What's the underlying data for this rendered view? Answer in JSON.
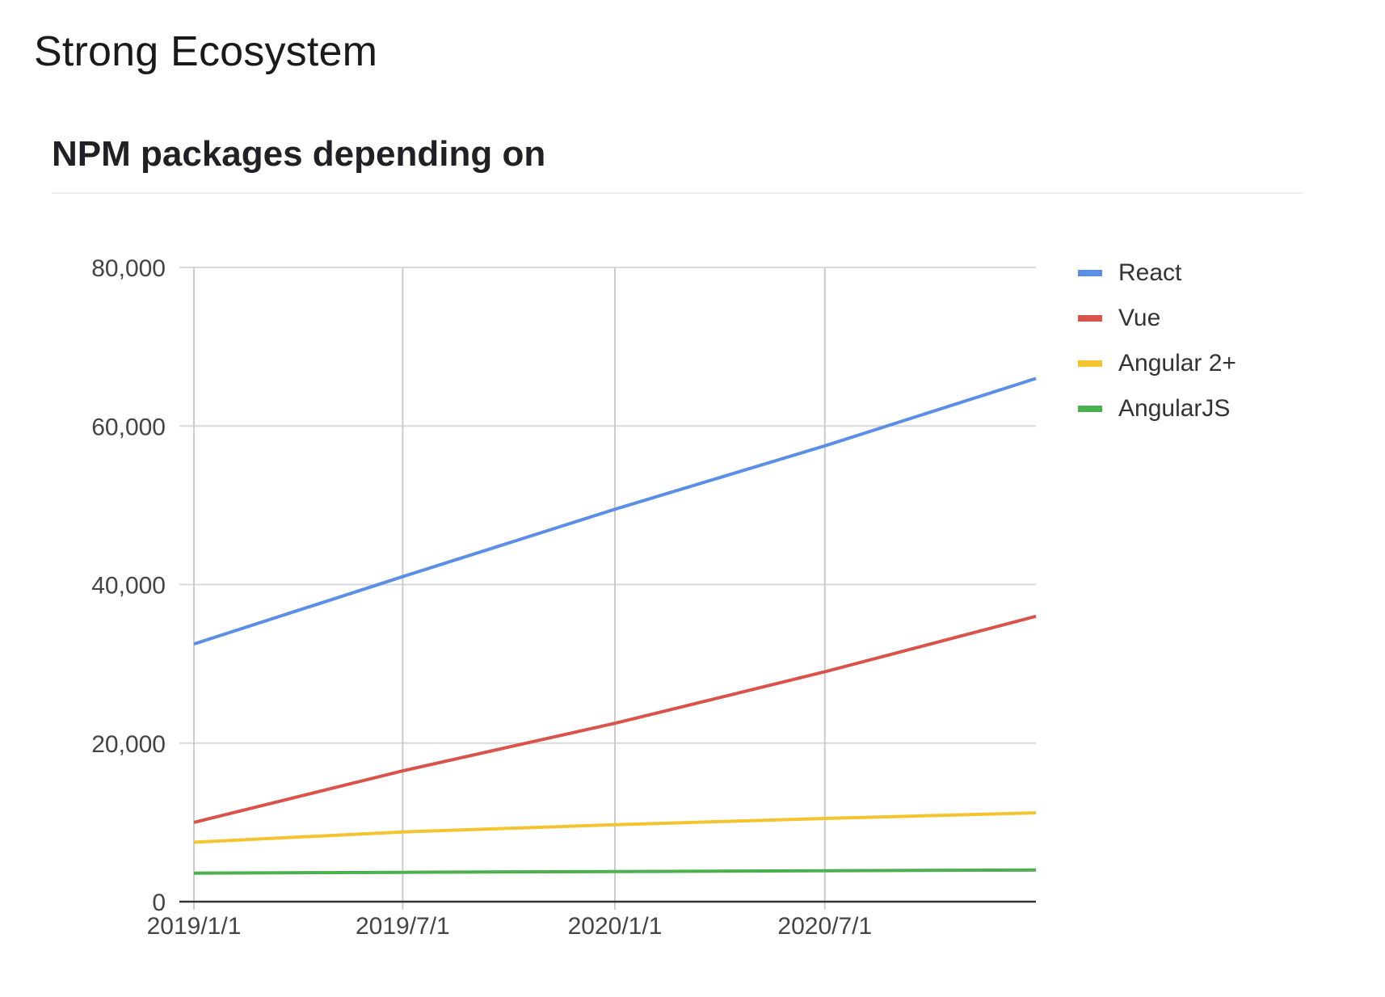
{
  "page": {
    "title": "Strong Ecosystem"
  },
  "chart_data": {
    "type": "line",
    "title": "NPM packages depending on",
    "xlabel": "",
    "ylabel": "",
    "x_ticks": [
      "2019/1/1",
      "2019/7/1",
      "2020/1/1",
      "2020/7/1"
    ],
    "x_range": [
      "2019-01-01",
      "2020-12-31"
    ],
    "x": [
      "2019-01-01",
      "2019-07-01",
      "2020-01-01",
      "2020-07-01",
      "2020-12-31"
    ],
    "y_ticks": [
      "0",
      "20,000",
      "40,000",
      "60,000",
      "80,000"
    ],
    "y_tick_values": [
      0,
      20000,
      40000,
      60000,
      80000
    ],
    "ylim": [
      0,
      80000
    ],
    "grid": true,
    "legend_position": "right",
    "series": [
      {
        "name": "React",
        "color": "#5b8ee6",
        "values": [
          32500,
          41000,
          49500,
          57500,
          66000
        ]
      },
      {
        "name": "Vue",
        "color": "#d9534a",
        "values": [
          10000,
          16500,
          22500,
          29000,
          36000
        ]
      },
      {
        "name": "Angular 2+",
        "color": "#f4c430",
        "values": [
          7500,
          8800,
          9700,
          10500,
          11200
        ]
      },
      {
        "name": "AngularJS",
        "color": "#4caf50",
        "values": [
          3600,
          3700,
          3800,
          3900,
          4000
        ]
      }
    ]
  }
}
